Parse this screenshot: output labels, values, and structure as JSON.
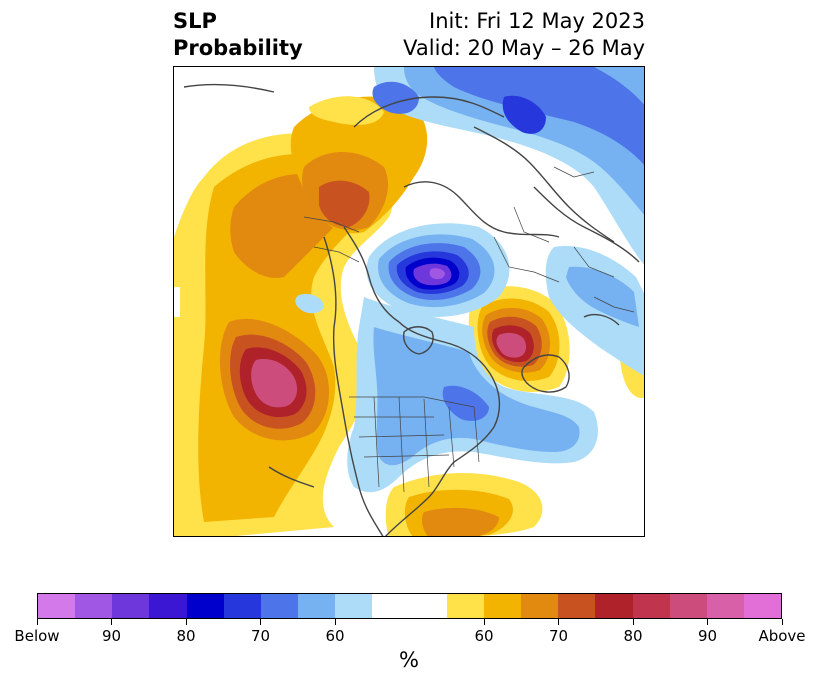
{
  "title": {
    "left_line1": "SLP",
    "left_line2": "Probability",
    "right_line1": "Init: Fri 12 May 2023",
    "right_line2": "Valid: 20 May – 26 May"
  },
  "colorbar": {
    "unit": "%",
    "colors": [
      "#d479ea",
      "#9f57e4",
      "#6e37dc",
      "#3b17d4",
      "#0000cc",
      "#2637dc",
      "#4d74e8",
      "#76b1f2",
      "#addcf8",
      "#ffffff",
      "#ffffff",
      "#ffe14a",
      "#f2b400",
      "#e28a10",
      "#c85320",
      "#b0222a",
      "#c0344d",
      "#cc4d7c",
      "#d860a8",
      "#e26fd8"
    ],
    "tick_labels": [
      "Below",
      "90",
      "80",
      "70",
      "60",
      "60",
      "70",
      "80",
      "90",
      "Above"
    ]
  },
  "map": {
    "projection": "polar-stereographic",
    "features": [
      "coastlines",
      "country-borders",
      "us-state-borders"
    ]
  }
}
